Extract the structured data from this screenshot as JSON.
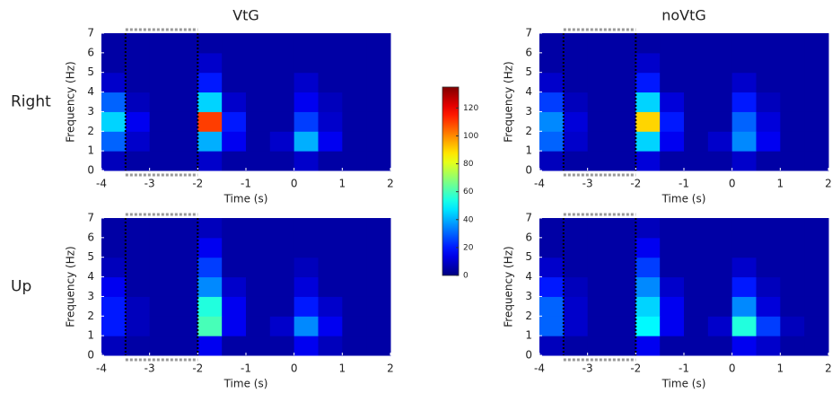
{
  "colorbar": {
    "colormap": "jet",
    "zlim": [
      0,
      135
    ],
    "zticks": [
      0,
      20,
      40,
      60,
      80,
      100,
      120
    ]
  },
  "chart_data": [
    {
      "type": "heatmap",
      "title": "VtG",
      "row_label": "Right",
      "xlabel": "Time (s)",
      "ylabel": "Frequency (Hz)",
      "xbins": [
        -4,
        -3.5,
        -3,
        -2.5,
        -2,
        -1.5,
        -1,
        -0.5,
        0,
        0.5,
        1,
        1.5,
        2
      ],
      "ybins": [
        0,
        1,
        2,
        3,
        4,
        5,
        6,
        7
      ],
      "z": [
        [
          8,
          5,
          5,
          5,
          10,
          5,
          5,
          5,
          10,
          5,
          5,
          5
        ],
        [
          30,
          10,
          5,
          5,
          40,
          15,
          5,
          10,
          40,
          15,
          5,
          5
        ],
        [
          45,
          15,
          5,
          5,
          110,
          20,
          5,
          5,
          25,
          10,
          5,
          5
        ],
        [
          30,
          8,
          5,
          5,
          45,
          10,
          5,
          5,
          15,
          8,
          5,
          5
        ],
        [
          10,
          5,
          5,
          5,
          20,
          5,
          5,
          5,
          10,
          5,
          5,
          5
        ],
        [
          5,
          5,
          5,
          5,
          10,
          5,
          5,
          5,
          5,
          5,
          5,
          5
        ],
        [
          5,
          5,
          5,
          5,
          5,
          5,
          5,
          5,
          5,
          5,
          5,
          5
        ]
      ],
      "xlim": [
        -4,
        2
      ],
      "ylim": [
        0,
        7
      ],
      "xticks": [
        -4,
        -3,
        -2,
        -1,
        0,
        1,
        2
      ],
      "yticks": [
        0,
        1,
        2,
        3,
        4,
        5,
        6,
        7
      ],
      "window": [
        -3.5,
        -2
      ]
    },
    {
      "type": "heatmap",
      "title": "noVtG",
      "xlabel": "Time (s)",
      "ylabel": "Frequency (Hz)",
      "xbins": [
        -4,
        -3.5,
        -3,
        -2.5,
        -2,
        -1.5,
        -1,
        -0.5,
        0,
        0.5,
        1,
        1.5,
        2
      ],
      "ybins": [
        0,
        1,
        2,
        3,
        4,
        5,
        6,
        7
      ],
      "z": [
        [
          8,
          5,
          5,
          5,
          12,
          5,
          5,
          5,
          10,
          5,
          5,
          5
        ],
        [
          30,
          10,
          5,
          5,
          45,
          15,
          5,
          10,
          35,
          15,
          5,
          5
        ],
        [
          35,
          12,
          5,
          5,
          90,
          20,
          5,
          5,
          30,
          12,
          5,
          5
        ],
        [
          25,
          8,
          5,
          5,
          45,
          12,
          5,
          5,
          20,
          8,
          5,
          5
        ],
        [
          10,
          5,
          5,
          5,
          20,
          5,
          5,
          5,
          10,
          5,
          5,
          5
        ],
        [
          5,
          5,
          5,
          5,
          10,
          5,
          5,
          5,
          5,
          5,
          5,
          5
        ],
        [
          5,
          5,
          5,
          5,
          5,
          5,
          5,
          5,
          5,
          5,
          5,
          5
        ]
      ],
      "xlim": [
        -4,
        2
      ],
      "ylim": [
        0,
        7
      ],
      "xticks": [
        -4,
        -3,
        -2,
        -1,
        0,
        1,
        2
      ],
      "yticks": [
        0,
        1,
        2,
        3,
        4,
        5,
        6,
        7
      ],
      "window": [
        -3.5,
        -2
      ]
    },
    {
      "type": "heatmap",
      "row_label": "Up",
      "xlabel": "Time (s)",
      "ylabel": "Frequency (Hz)",
      "xbins": [
        -4,
        -3.5,
        -3,
        -2.5,
        -2,
        -1.5,
        -1,
        -0.5,
        0,
        0.5,
        1,
        1.5,
        2
      ],
      "ybins": [
        0,
        1,
        2,
        3,
        4,
        5,
        6,
        7
      ],
      "z": [
        [
          8,
          5,
          5,
          5,
          15,
          5,
          5,
          5,
          15,
          8,
          5,
          5
        ],
        [
          20,
          8,
          5,
          5,
          60,
          15,
          5,
          10,
          35,
          15,
          5,
          5
        ],
        [
          20,
          8,
          5,
          5,
          55,
          15,
          5,
          5,
          20,
          10,
          5,
          5
        ],
        [
          15,
          5,
          5,
          5,
          35,
          10,
          5,
          5,
          12,
          5,
          5,
          5
        ],
        [
          8,
          5,
          5,
          5,
          25,
          5,
          5,
          5,
          8,
          5,
          5,
          5
        ],
        [
          5,
          5,
          5,
          5,
          15,
          5,
          5,
          5,
          5,
          5,
          5,
          5
        ],
        [
          5,
          5,
          5,
          5,
          8,
          5,
          5,
          5,
          5,
          5,
          5,
          5
        ]
      ],
      "xlim": [
        -4,
        2
      ],
      "ylim": [
        0,
        7
      ],
      "xticks": [
        -4,
        -3,
        -2,
        -1,
        0,
        1,
        2
      ],
      "yticks": [
        0,
        1,
        2,
        3,
        4,
        5,
        6,
        7
      ],
      "window": [
        -3.5,
        -2
      ]
    },
    {
      "type": "heatmap",
      "xlabel": "Time (s)",
      "ylabel": "Frequency (Hz)",
      "xbins": [
        -4,
        -3.5,
        -3,
        -2.5,
        -2,
        -1.5,
        -1,
        -0.5,
        0,
        0.5,
        1,
        1.5,
        2
      ],
      "ybins": [
        0,
        1,
        2,
        3,
        4,
        5,
        6,
        7
      ],
      "z": [
        [
          8,
          5,
          5,
          5,
          15,
          5,
          5,
          5,
          15,
          10,
          5,
          5
        ],
        [
          30,
          10,
          5,
          5,
          50,
          15,
          5,
          10,
          55,
          25,
          8,
          5
        ],
        [
          30,
          10,
          5,
          5,
          45,
          15,
          5,
          5,
          35,
          12,
          5,
          5
        ],
        [
          20,
          8,
          5,
          5,
          35,
          10,
          5,
          5,
          20,
          8,
          5,
          5
        ],
        [
          10,
          5,
          5,
          5,
          25,
          5,
          5,
          5,
          10,
          5,
          5,
          5
        ],
        [
          5,
          5,
          5,
          5,
          15,
          5,
          5,
          5,
          5,
          5,
          5,
          5
        ],
        [
          5,
          5,
          5,
          5,
          8,
          5,
          5,
          5,
          5,
          5,
          5,
          5
        ]
      ],
      "xlim": [
        -4,
        2
      ],
      "ylim": [
        0,
        7
      ],
      "xticks": [
        -4,
        -3,
        -2,
        -1,
        0,
        1,
        2
      ],
      "yticks": [
        0,
        1,
        2,
        3,
        4,
        5,
        6,
        7
      ],
      "window": [
        -3.5,
        -2
      ]
    }
  ]
}
